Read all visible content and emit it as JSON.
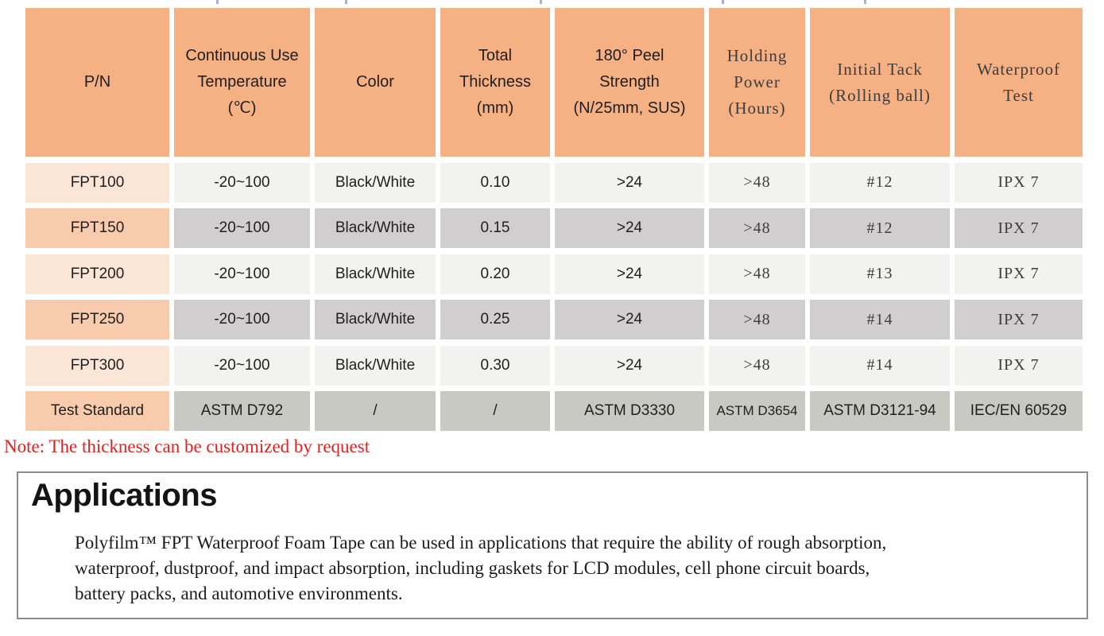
{
  "colors": {
    "header_bg": "#F5B183",
    "row_first_light": "#FBE5D6",
    "row_first_mid": "#F8CBAD",
    "row_light": "#F2F2F0",
    "row_mid": "#D0CECE",
    "footer_gray": "#C9C9C3",
    "sans_text": "#1F1F1F",
    "serif_text": "#3D3D3D",
    "note_red": "#ED1C1C",
    "box_border": "#8C8C8C"
  },
  "top_ticks": [
    272,
    434,
    679,
    908,
    1087
  ],
  "table": {
    "header_cells": [
      {
        "name": "pn",
        "lines": [
          "P/N"
        ],
        "font": "sans"
      },
      {
        "name": "temperature",
        "lines": [
          "Continuous Use",
          "Temperature",
          "(℃)"
        ],
        "font": "sans"
      },
      {
        "name": "color",
        "lines": [
          "Color"
        ],
        "font": "sans"
      },
      {
        "name": "thickness",
        "lines": [
          "Total",
          "Thickness",
          "(mm)"
        ],
        "font": "sans"
      },
      {
        "name": "peel",
        "lines": [
          "180° Peel",
          "Strength",
          "(N/25mm, SUS)"
        ],
        "font": "sans"
      },
      {
        "name": "holding",
        "lines": [
          "Holding",
          "Power",
          "(Hours)"
        ],
        "font": "serif"
      },
      {
        "name": "tack",
        "lines": [
          "Initial Tack",
          "(Rolling ball)"
        ],
        "font": "serif"
      },
      {
        "name": "waterproof",
        "lines": [
          "Waterproof",
          "Test"
        ],
        "font": "serif"
      }
    ],
    "column_fonts": [
      "sans",
      "sans",
      "sans",
      "sans",
      "sans",
      "serif",
      "serif",
      "serif"
    ],
    "rows": [
      {
        "shade": "light",
        "cells": [
          "FPT100",
          "-20~100",
          "Black/White",
          "0.10",
          ">24",
          ">48",
          "#12",
          "IPX 7"
        ]
      },
      {
        "shade": "mid",
        "cells": [
          "FPT150",
          "-20~100",
          "Black/White",
          "0.15",
          ">24",
          ">48",
          "#12",
          "IPX 7"
        ]
      },
      {
        "shade": "light",
        "cells": [
          "FPT200",
          "-20~100",
          "Black/White",
          "0.20",
          ">24",
          ">48",
          "#13",
          "IPX 7"
        ]
      },
      {
        "shade": "mid",
        "cells": [
          "FPT250",
          "-20~100",
          "Black/White",
          "0.25",
          ">24",
          ">48",
          "#14",
          "IPX 7"
        ]
      },
      {
        "shade": "light",
        "cells": [
          "FPT300",
          "-20~100",
          "Black/White",
          "0.30",
          ">24",
          ">48",
          "#14",
          "IPX 7"
        ]
      }
    ],
    "footer": {
      "cells": [
        "Test Standard",
        "ASTM D792",
        "/",
        "/",
        "ASTM D3330",
        "ASTM D3654",
        "ASTM D3121-94",
        "IEC/EN 60529"
      ],
      "small_cell_index": 5
    }
  },
  "note": {
    "text": "Note: The thickness can be customized by request"
  },
  "applications": {
    "title": "Applications",
    "lines": [
      "Polyfilm™ FPT Waterproof Foam Tape can be used in applications that require the ability of rough absorption,",
      "waterproof, dustproof, and impact absorption, including gaskets for LCD modules, cell phone circuit boards,",
      "battery packs, and automotive environments."
    ]
  }
}
